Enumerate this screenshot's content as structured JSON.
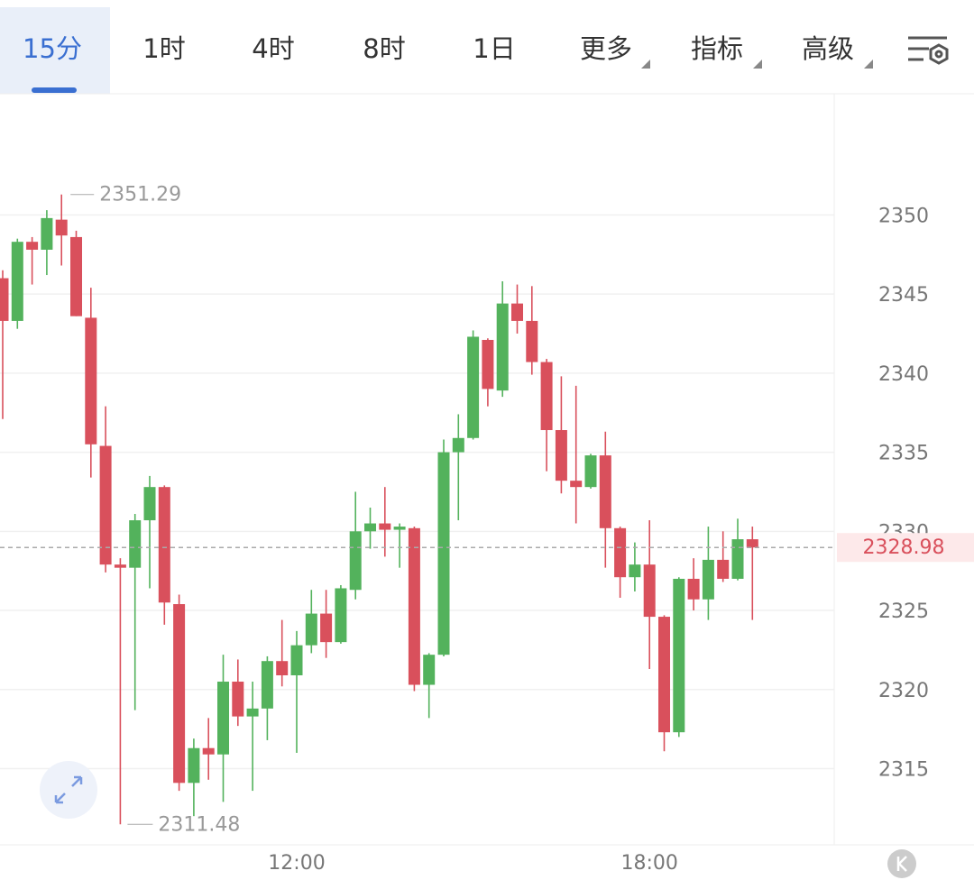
{
  "toolbar": {
    "tabs": [
      "15分",
      "1时",
      "4时",
      "8时",
      "1日",
      "更多",
      "指标",
      "高级"
    ]
  },
  "chart_data": {
    "type": "candlestick",
    "categories": [
      null,
      null,
      null,
      null,
      null,
      null,
      null,
      null,
      null,
      null,
      null,
      null,
      null,
      null,
      null,
      null,
      null,
      null,
      null,
      null,
      "12:00",
      null,
      null,
      null,
      null,
      null,
      null,
      null,
      null,
      null,
      null,
      null,
      null,
      null,
      null,
      null,
      null,
      null,
      null,
      null,
      null,
      null,
      null,
      null,
      "18:00",
      null,
      null,
      null,
      null,
      null,
      null,
      null
    ],
    "open": [
      2346.0,
      2343.3,
      2348.3,
      2347.8,
      2349.7,
      2348.6,
      2343.5,
      2335.4,
      2327.9,
      2327.7,
      2330.7,
      2332.8,
      2325.4,
      2314.1,
      2316.3,
      2315.9,
      2320.5,
      2318.3,
      2318.8,
      2321.8,
      2320.9,
      2322.8,
      2324.8,
      2323.0,
      2326.3,
      2330.0,
      2330.5,
      2330.1,
      2330.2,
      2320.3,
      2322.2,
      2335.0,
      2335.9,
      2342.1,
      2338.9,
      2344.4,
      2343.3,
      2340.7,
      2336.4,
      2333.2,
      2332.8,
      2334.8,
      2330.2,
      2327.1,
      2327.9,
      2324.6,
      2317.3,
      2327.0,
      2325.7,
      2328.2,
      2327.0,
      2329.5
    ],
    "high": [
      2346.5,
      2348.5,
      2348.6,
      2350.3,
      2351.29,
      2349.0,
      2345.4,
      2337.9,
      2328.3,
      2331.1,
      2333.5,
      2332.9,
      2326.0,
      2316.9,
      2318.2,
      2322.2,
      2321.9,
      2320.5,
      2322.1,
      2324.4,
      2323.7,
      2326.3,
      2326.3,
      2326.6,
      2332.5,
      2331.5,
      2332.8,
      2330.5,
      2330.3,
      2322.3,
      2335.8,
      2337.4,
      2342.7,
      2342.2,
      2345.8,
      2345.6,
      2345.5,
      2340.9,
      2339.8,
      2339.2,
      2334.9,
      2336.3,
      2330.3,
      2329.3,
      2330.7,
      2324.7,
      2327.1,
      2328.3,
      2330.3,
      2330.0,
      2330.8,
      2330.3
    ],
    "low": [
      2337.1,
      2342.8,
      2345.6,
      2346.2,
      2346.8,
      2343.6,
      2333.4,
      2327.4,
      2311.48,
      2318.7,
      2326.4,
      2324.1,
      2313.6,
      2312.0,
      2314.3,
      2312.9,
      2317.7,
      2313.6,
      2316.8,
      2320.2,
      2316.0,
      2322.3,
      2322.0,
      2322.9,
      2325.7,
      2328.9,
      2328.4,
      2327.7,
      2319.9,
      2318.2,
      2322.1,
      2330.7,
      2335.8,
      2337.9,
      2338.5,
      2342.5,
      2339.9,
      2333.8,
      2332.4,
      2330.5,
      2332.7,
      2327.7,
      2325.8,
      2326.2,
      2321.3,
      2316.1,
      2317.0,
      2325.0,
      2324.4,
      2326.8,
      2326.9,
      2324.4
    ],
    "close": [
      2343.3,
      2348.3,
      2347.8,
      2349.8,
      2348.7,
      2343.6,
      2335.5,
      2327.9,
      2327.7,
      2330.7,
      2332.8,
      2325.5,
      2314.1,
      2316.3,
      2315.9,
      2320.5,
      2318.3,
      2318.8,
      2321.8,
      2320.9,
      2322.8,
      2324.8,
      2323.0,
      2326.4,
      2330.0,
      2330.5,
      2330.1,
      2330.3,
      2320.3,
      2322.2,
      2335.0,
      2335.9,
      2342.3,
      2339.0,
      2344.4,
      2343.3,
      2340.7,
      2336.4,
      2333.2,
      2332.8,
      2334.8,
      2330.2,
      2327.1,
      2327.9,
      2324.6,
      2317.3,
      2327.0,
      2325.7,
      2328.2,
      2327.0,
      2329.5,
      2328.98
    ],
    "up_color": "#53b25c",
    "down_color": "#d9505c",
    "ylim": [
      2310.3,
      2357.6
    ],
    "yticks": [
      2315,
      2320,
      2325,
      2330,
      2335,
      2340,
      2345,
      2350
    ],
    "grid": true
  }
}
